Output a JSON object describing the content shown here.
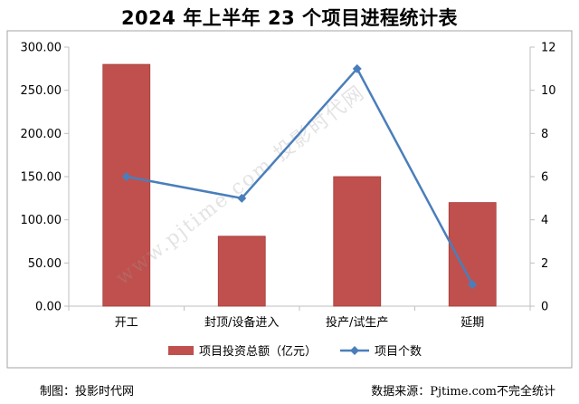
{
  "chart_data": {
    "type": "bar",
    "title": "2024 年上半年 23 个项目进程统计表",
    "categories": [
      "开工",
      "封顶/设备进入",
      "投产/试生产",
      "延期"
    ],
    "series": [
      {
        "name": "项目投资总额（亿元）",
        "type": "bar",
        "axis": "left",
        "values": [
          280,
          81,
          150,
          120
        ]
      },
      {
        "name": "项目个数",
        "type": "line",
        "axis": "right",
        "values": [
          6,
          5,
          11,
          1
        ]
      }
    ],
    "y_left": {
      "min": 0,
      "max": 300,
      "step": 50,
      "decimals": 2
    },
    "y_right": {
      "min": 0,
      "max": 12,
      "step": 2,
      "decimals": 0
    },
    "grid": false,
    "legend": "bottom",
    "colors": {
      "bar": "#c0504d",
      "bar_edge": "#a33d3a",
      "line": "#4a7ebb",
      "axis": "#bfbfbf",
      "frame": "#a6a6a6"
    }
  },
  "watermark": "www.pjtime.com 投影时代网",
  "footer": {
    "left": "制图：投影时代网",
    "right": "数据来源：Pjtime.com不完全统计"
  }
}
